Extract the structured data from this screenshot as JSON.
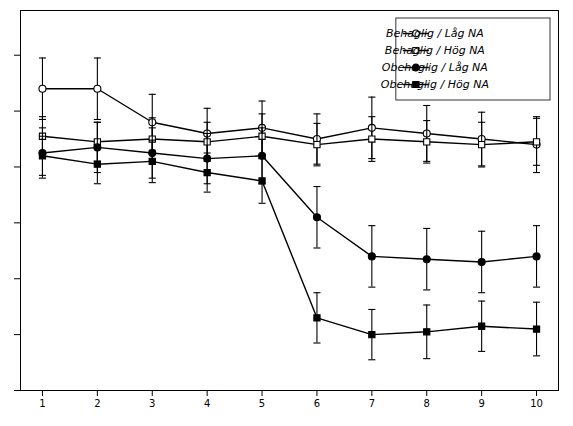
{
  "chart_data": {
    "type": "line",
    "x": [
      1,
      2,
      3,
      4,
      5,
      6,
      7,
      8,
      9,
      10
    ],
    "xlim": [
      0.6,
      10.4
    ],
    "xticks": [
      1,
      2,
      3,
      4,
      5,
      6,
      7,
      8,
      9,
      10
    ],
    "ylim": [
      -2.0,
      4.8
    ],
    "yticks": [
      -2,
      -1,
      0,
      1,
      2,
      3,
      4
    ],
    "tick_labels": "x",
    "grid": false,
    "legend": "upper right",
    "series": [
      {
        "name": "Behaglig / Låg NA",
        "color": "#000000",
        "marker": "circle-open",
        "values": [
          3.4,
          3.4,
          2.8,
          2.6,
          2.7,
          2.5,
          2.7,
          2.6,
          2.5,
          2.4
        ],
        "errors": [
          0.55,
          0.55,
          0.5,
          0.45,
          0.48,
          0.45,
          0.55,
          0.5,
          0.48,
          0.5
        ]
      },
      {
        "name": "Behaglig / Hög NA",
        "color": "#000000",
        "marker": "square-open",
        "values": [
          2.55,
          2.45,
          2.5,
          2.45,
          2.55,
          2.4,
          2.5,
          2.45,
          2.4,
          2.45
        ],
        "errors": [
          0.35,
          0.35,
          0.38,
          0.35,
          0.4,
          0.38,
          0.4,
          0.38,
          0.4,
          0.42
        ]
      },
      {
        "name": "Obehaglig / Låg NA",
        "color": "#000000",
        "marker": "circle",
        "values": [
          2.25,
          2.35,
          2.25,
          2.15,
          2.2,
          1.1,
          0.4,
          0.35,
          0.3,
          0.4
        ],
        "errors": [
          0.45,
          0.45,
          0.45,
          0.45,
          0.5,
          0.55,
          0.55,
          0.55,
          0.55,
          0.55
        ]
      },
      {
        "name": "Obehaglig / Hög NA",
        "color": "#000000",
        "marker": "square",
        "values": [
          2.2,
          2.05,
          2.1,
          1.9,
          1.75,
          -0.7,
          -1.0,
          -0.95,
          -0.85,
          -0.9
        ],
        "errors": [
          0.35,
          0.35,
          0.38,
          0.35,
          0.4,
          0.45,
          0.45,
          0.48,
          0.45,
          0.48
        ]
      }
    ]
  }
}
